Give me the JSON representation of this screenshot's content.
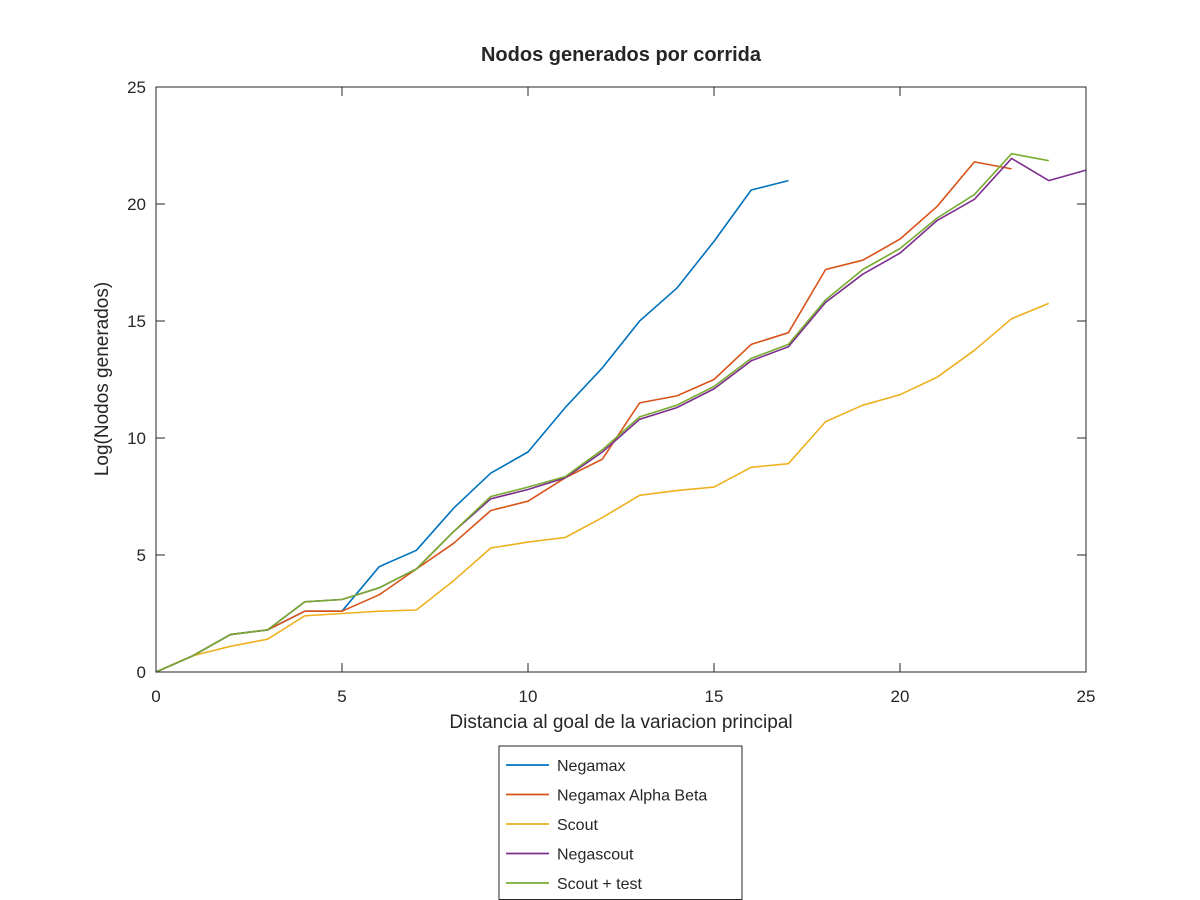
{
  "chart_data": {
    "type": "line",
    "title": "Nodos generados por corrida",
    "xlabel": "Distancia al goal de la variacion principal",
    "ylabel": "Log(Nodos generados)",
    "xlim": [
      0,
      25
    ],
    "ylim": [
      0,
      25
    ],
    "xticks": [
      0,
      5,
      10,
      15,
      20,
      25
    ],
    "yticks": [
      0,
      5,
      10,
      15,
      20,
      25
    ],
    "grid": false,
    "legend_position": "below-center",
    "series": [
      {
        "name": "Negamax",
        "color": "#0072BD",
        "x": [
          0,
          1,
          2,
          3,
          4,
          5,
          6,
          7,
          8,
          9,
          10,
          11,
          12,
          13,
          14,
          15,
          16,
          17
        ],
        "y": [
          0,
          0.7,
          1.6,
          1.8,
          2.6,
          2.6,
          4.5,
          5.2,
          7.0,
          8.5,
          9.4,
          11.3,
          13.0,
          15.0,
          16.4,
          18.4,
          20.6,
          21.0
        ]
      },
      {
        "name": "Negamax Alpha Beta",
        "color": "#D95319",
        "x": [
          0,
          1,
          2,
          3,
          4,
          5,
          6,
          7,
          8,
          9,
          10,
          11,
          12,
          13,
          14,
          15,
          16,
          17,
          18,
          19,
          20,
          21,
          22,
          23
        ],
        "y": [
          0,
          0.7,
          1.6,
          1.8,
          2.6,
          2.6,
          3.3,
          4.4,
          5.5,
          6.9,
          7.3,
          8.3,
          9.1,
          11.5,
          11.8,
          12.5,
          14.0,
          14.5,
          17.2,
          17.6,
          18.5,
          19.9,
          21.8,
          21.5
        ]
      },
      {
        "name": "Scout",
        "color": "#EDB120",
        "x": [
          0,
          1,
          2,
          3,
          4,
          5,
          6,
          7,
          8,
          9,
          10,
          11,
          12,
          13,
          14,
          15,
          16,
          17,
          18,
          19,
          20,
          21,
          22,
          23,
          24
        ],
        "y": [
          0,
          0.7,
          1.1,
          1.4,
          2.4,
          2.5,
          2.6,
          2.65,
          3.9,
          5.3,
          5.55,
          5.75,
          6.6,
          7.55,
          7.75,
          7.9,
          8.75,
          8.9,
          10.7,
          11.4,
          11.85,
          12.6,
          13.75,
          15.1,
          15.75
        ]
      },
      {
        "name": "Negascout",
        "color": "#7E2F8E",
        "x": [
          0,
          1,
          2,
          3,
          4,
          5,
          6,
          7,
          8,
          9,
          10,
          11,
          12,
          13,
          14,
          15,
          16,
          17,
          18,
          19,
          20,
          21,
          22,
          23,
          24,
          25
        ],
        "y": [
          0,
          0.7,
          1.6,
          1.8,
          3.0,
          3.1,
          3.6,
          4.4,
          6.0,
          7.4,
          7.8,
          8.3,
          9.4,
          10.8,
          11.3,
          12.1,
          13.3,
          13.9,
          15.8,
          17.0,
          17.9,
          19.3,
          20.2,
          21.95,
          21.0,
          21.45
        ]
      },
      {
        "name": "Scout + test",
        "color": "#77AC30",
        "x": [
          0,
          1,
          2,
          3,
          4,
          5,
          6,
          7,
          8,
          9,
          10,
          11,
          12,
          13,
          14,
          15,
          16,
          17,
          18,
          19,
          20,
          21,
          22,
          23,
          24
        ],
        "y": [
          0,
          0.7,
          1.6,
          1.8,
          3.0,
          3.1,
          3.6,
          4.4,
          6.0,
          7.5,
          7.9,
          8.35,
          9.5,
          10.9,
          11.4,
          12.2,
          13.4,
          14.0,
          15.9,
          17.2,
          18.1,
          19.4,
          20.4,
          22.15,
          21.85
        ]
      }
    ]
  }
}
